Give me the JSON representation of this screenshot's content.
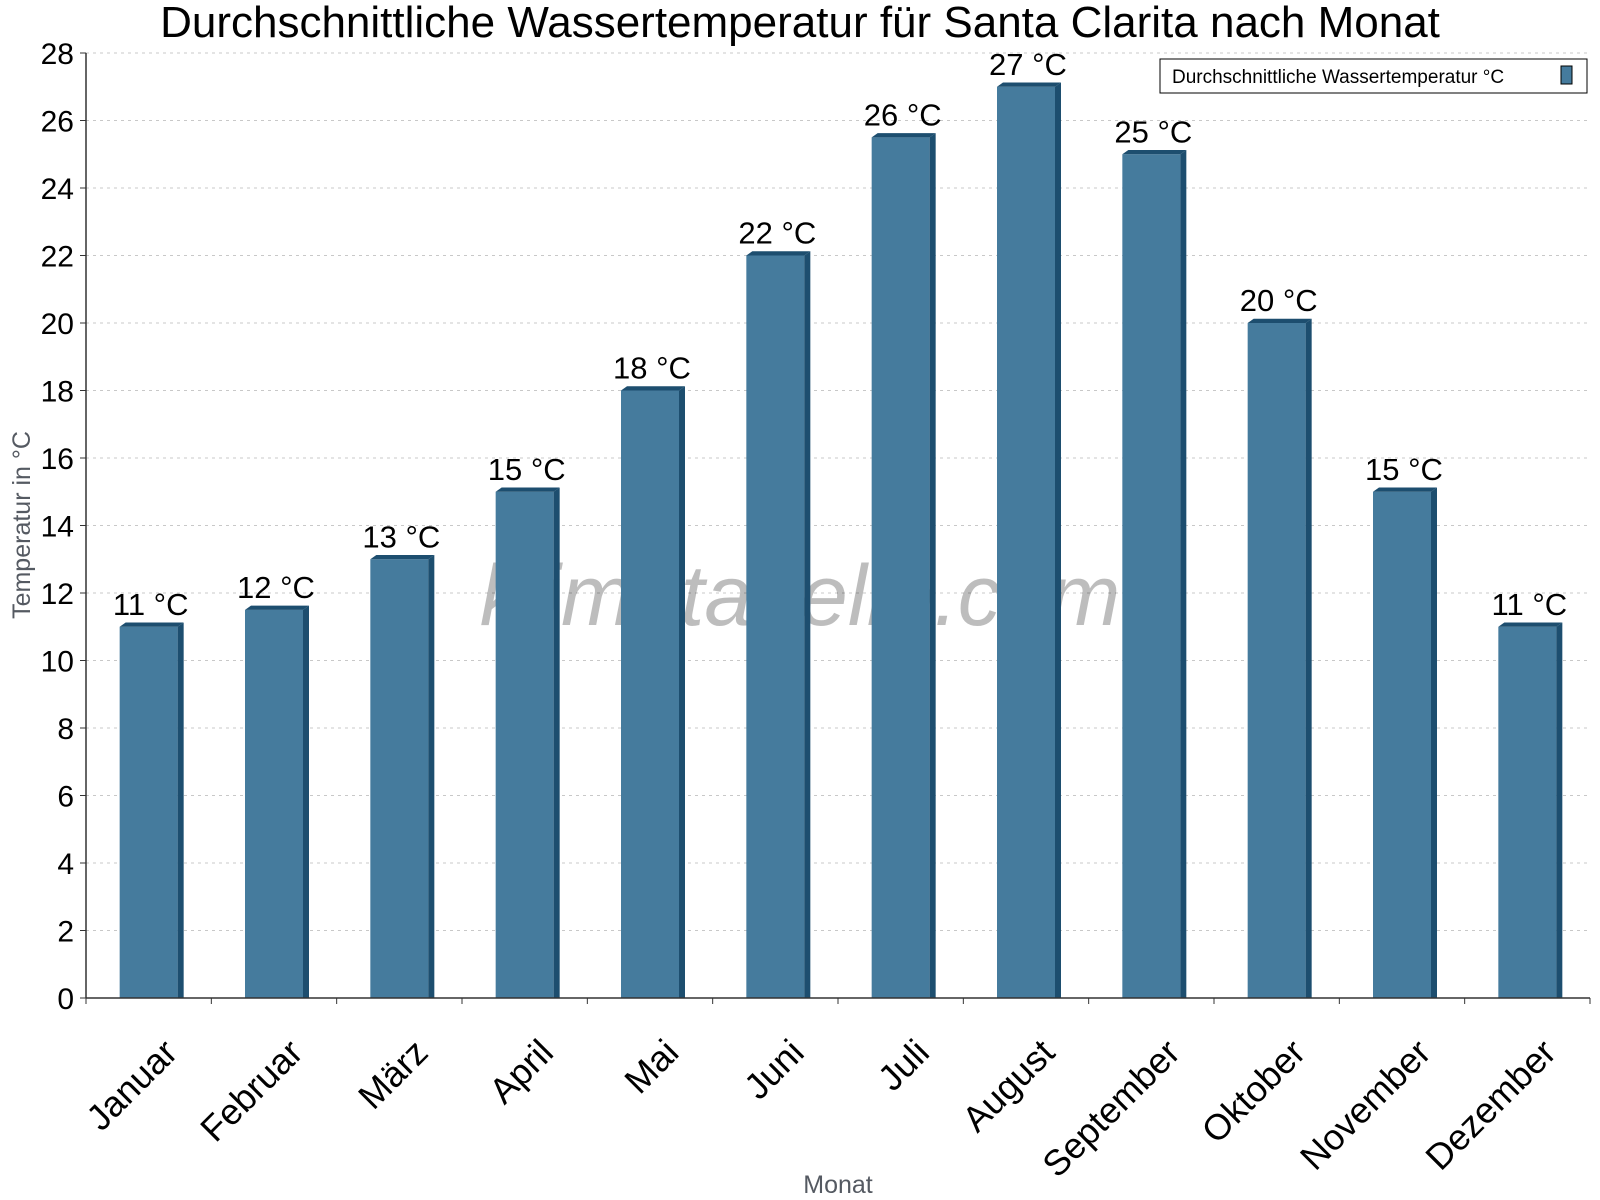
{
  "title": "Durchschnittliche Wassertemperatur für Santa Clarita nach Monat",
  "watermark": "klimatabelle.com",
  "colors": {
    "bar_front": "#457b9d",
    "bar_side": "#1d4e6f",
    "bar_top": "#1d4e6f",
    "grid": "#c8c8c8",
    "axis": "#333333"
  },
  "chart_data": {
    "type": "bar",
    "title": "Durchschnittliche Wassertemperatur für Santa Clarita nach Monat",
    "xlabel": "Monat",
    "ylabel": "Temperatur in °C",
    "ylim": [
      0,
      28
    ],
    "yticks": [
      0,
      2,
      4,
      6,
      8,
      10,
      12,
      14,
      16,
      18,
      20,
      22,
      24,
      26,
      28
    ],
    "grid": true,
    "legend_position": "top-right",
    "categories": [
      "Januar",
      "Februar",
      "März",
      "April",
      "Mai",
      "Juni",
      "Juli",
      "August",
      "September",
      "Oktober",
      "November",
      "Dezember"
    ],
    "series": [
      {
        "name": "Durchschnittliche Wassertemperatur °C",
        "values": [
          11,
          11.5,
          13,
          15,
          18,
          22,
          25.5,
          27,
          25,
          20,
          15,
          11
        ],
        "labels": [
          "11 °C",
          "12 °C",
          "13 °C",
          "15 °C",
          "18 °C",
          "22 °C",
          "26 °C",
          "27 °C",
          "25 °C",
          "20 °C",
          "15 °C",
          "11 °C"
        ]
      }
    ]
  }
}
